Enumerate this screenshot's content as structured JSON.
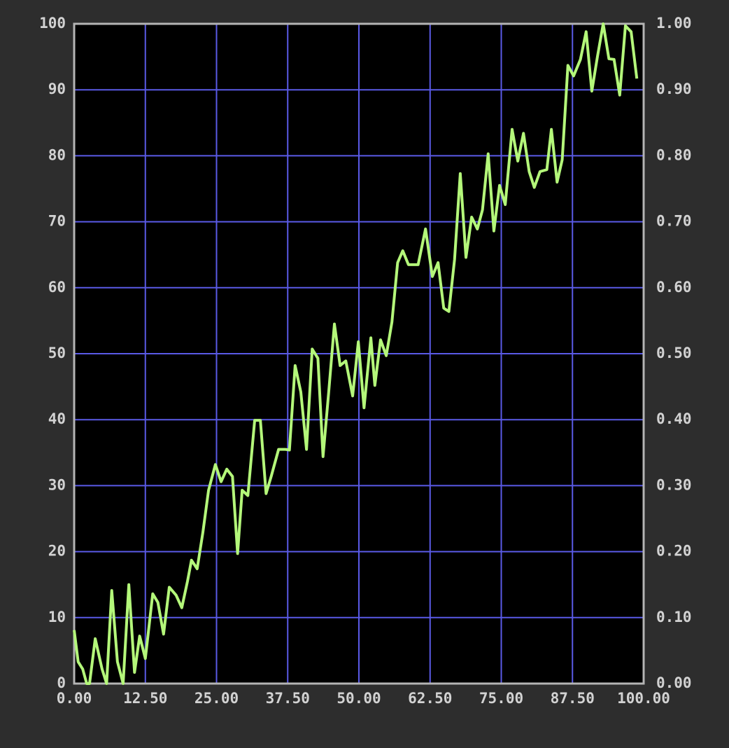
{
  "chart_data": {
    "type": "line",
    "x": [
      0,
      0.7,
      1.5,
      2.2,
      2.7,
      3.7,
      4.9,
      5.7,
      6.6,
      7.6,
      8.6,
      9.6,
      10.6,
      11.5,
      12.5,
      13.8,
      14.7,
      15.7,
      16.7,
      17.9,
      18.9,
      19.9,
      20.6,
      21.6,
      22.6,
      23.6,
      24.8,
      25.8,
      26.8,
      27.8,
      28.7,
      29.5,
      30.5,
      31.7,
      32.7,
      33.7,
      34.6,
      35.9,
      37.1,
      37.8,
      38.8,
      39.8,
      40.8,
      41.8,
      42.8,
      43.7,
      44.7,
      45.7,
      46.7,
      47.7,
      48.9,
      49.9,
      50.9,
      52.1,
      52.8,
      53.8,
      54.8,
      55.8,
      56.8,
      57.7,
      58.7,
      60.4,
      61.7,
      62.9,
      63.9,
      64.9,
      65.8,
      66.8,
      67.8,
      68.8,
      69.8,
      70.8,
      71.7,
      72.7,
      73.7,
      74.7,
      75.7,
      76.9,
      77.9,
      78.9,
      79.9,
      80.8,
      81.8,
      83.0,
      83.8,
      84.8,
      85.7,
      86.7,
      87.7,
      88.9,
      89.9,
      90.9,
      91.9,
      92.9,
      93.9,
      94.8,
      95.8,
      96.8,
      97.8,
      98.8
    ],
    "series": [
      {
        "color": "#b4f77a",
        "values": [
          8.1,
          3.3,
          2.2,
          0,
          0,
          6.8,
          2.2,
          0,
          14.1,
          3.3,
          0,
          15.0,
          1.7,
          7.2,
          3.8,
          13.6,
          12.3,
          7.5,
          14.6,
          13.4,
          11.5,
          15.5,
          18.7,
          17.4,
          22.9,
          29.3,
          33.2,
          30.6,
          32.5,
          31.4,
          19.7,
          29.3,
          28.5,
          39.9,
          39.9,
          28.8,
          31.4,
          35.5,
          35.5,
          35.4,
          48.2,
          44.2,
          35.5,
          50.7,
          49.3,
          34.4,
          44.2,
          54.5,
          48.2,
          48.9,
          43.6,
          51.8,
          41.8,
          52.4,
          45.2,
          52.1,
          49.7,
          54.8,
          63.8,
          65.6,
          63.5,
          63.5,
          68.9,
          61.7,
          63.8,
          56.9,
          56.4,
          64.3,
          77.3,
          64.6,
          70.7,
          68.9,
          71.8,
          80.3,
          68.6,
          75.5,
          72.6,
          84.0,
          79.2,
          83.4,
          77.6,
          75.2,
          77.6,
          77.9,
          84.0,
          76.0,
          79.4,
          93.7,
          92.1,
          94.6,
          98.8,
          89.8,
          95.1,
          100,
          94.7,
          94.6,
          89.2,
          99.7,
          98.8,
          91.7
        ]
      }
    ],
    "xlim": [
      0,
      100
    ],
    "xticks": [
      {
        "value": 0,
        "label": "0.00"
      },
      {
        "value": 12.5,
        "label": "12.50"
      },
      {
        "value": 25,
        "label": "25.00"
      },
      {
        "value": 37.5,
        "label": "37.50"
      },
      {
        "value": 50,
        "label": "50.00"
      },
      {
        "value": 62.5,
        "label": "62.50"
      },
      {
        "value": 75,
        "label": "75.00"
      },
      {
        "value": 87.5,
        "label": "87.50"
      },
      {
        "value": 100,
        "label": "100.00"
      }
    ],
    "ylim": [
      0,
      100
    ],
    "yticks": [
      0,
      10,
      20,
      30,
      40,
      50,
      60,
      70,
      80,
      90,
      100
    ],
    "y2lim": [
      0,
      1
    ],
    "y2ticks": [
      {
        "value": 0,
        "label": "0.00"
      },
      {
        "value": 0.1,
        "label": "0.10"
      },
      {
        "value": 0.2,
        "label": "0.20"
      },
      {
        "value": 0.3,
        "label": "0.30"
      },
      {
        "value": 0.4,
        "label": "0.40"
      },
      {
        "value": 0.5,
        "label": "0.50"
      },
      {
        "value": 0.6,
        "label": "0.60"
      },
      {
        "value": 0.7,
        "label": "0.70"
      },
      {
        "value": 0.8,
        "label": "0.80"
      },
      {
        "value": 0.9,
        "label": "0.90"
      },
      {
        "value": 1,
        "label": "1.00"
      }
    ],
    "grid": true,
    "grid_color": "#5a5ae6"
  }
}
